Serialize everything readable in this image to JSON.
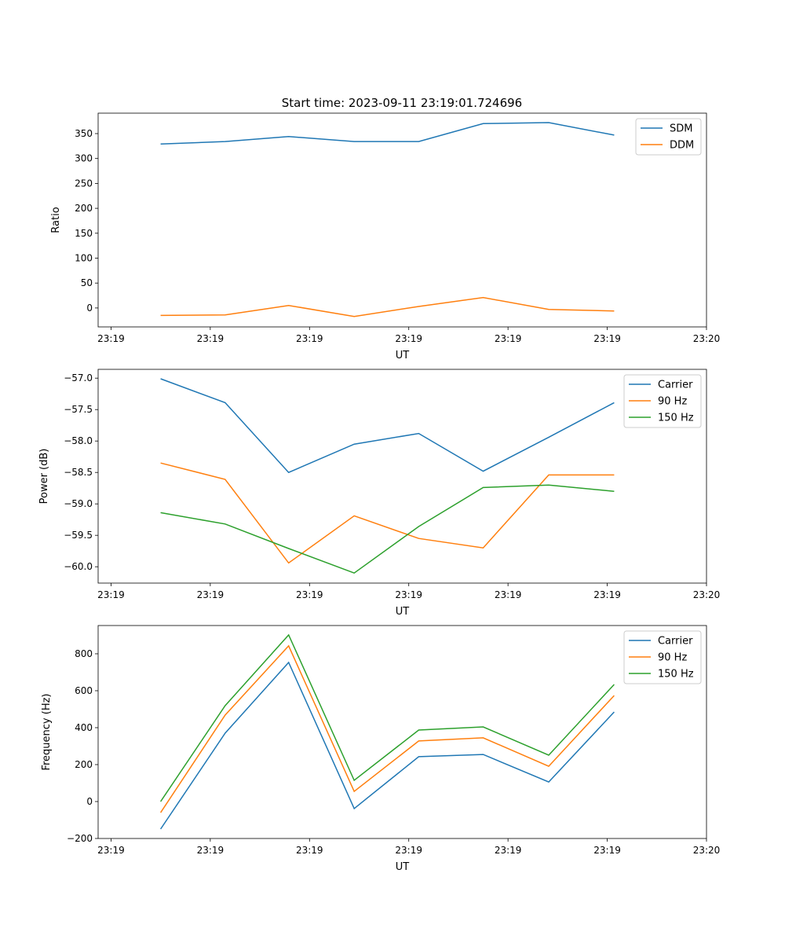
{
  "title": "Start time: 2023-09-11 23:19:01.724696",
  "colors": {
    "c0": "#1f77b4",
    "c1": "#ff7f0e",
    "c2": "#2ca02c"
  },
  "chart_data": [
    {
      "type": "line",
      "xlabel": "UT",
      "ylabel": "Ratio",
      "xlim": [
        -1.3,
        60
      ],
      "ylim": [
        -38,
        391
      ],
      "x_ticks": [
        0,
        10,
        20,
        30,
        40,
        50,
        60
      ],
      "x_tick_labels": [
        "23:19",
        "23:19",
        "23:19",
        "23:19",
        "23:19",
        "23:19",
        "23:20"
      ],
      "y_ticks": [
        0,
        50,
        100,
        150,
        200,
        250,
        300,
        350
      ],
      "y_tick_labels": [
        "0",
        "50",
        "100",
        "150",
        "200",
        "250",
        "300",
        "350"
      ],
      "legend": "top-right",
      "x": [
        5.0,
        11.5,
        17.9,
        24.5,
        31.0,
        37.5,
        44.1,
        50.7
      ],
      "series": [
        {
          "name": "SDM",
          "color": "#1f77b4",
          "values": [
            329,
            334,
            344,
            334,
            334,
            370,
            372,
            347
          ]
        },
        {
          "name": "DDM",
          "color": "#ff7f0e",
          "values": [
            -15,
            -14,
            5,
            -17,
            3,
            21,
            -3,
            -6
          ]
        }
      ]
    },
    {
      "type": "line",
      "xlabel": "UT",
      "ylabel": "Power (dB)",
      "xlim": [
        -1.3,
        60
      ],
      "ylim": [
        -60.26,
        -56.86
      ],
      "x_ticks": [
        0,
        10,
        20,
        30,
        40,
        50,
        60
      ],
      "x_tick_labels": [
        "23:19",
        "23:19",
        "23:19",
        "23:19",
        "23:19",
        "23:19",
        "23:20"
      ],
      "y_ticks": [
        -60,
        -59.5,
        -59,
        -58.5,
        -58,
        -57.5,
        -57
      ],
      "y_tick_labels": [
        "−60.0",
        "−59.5",
        "−59.0",
        "−58.5",
        "−58.0",
        "−57.5",
        "−57.0"
      ],
      "legend": "top-right",
      "x": [
        5.0,
        11.5,
        17.9,
        24.5,
        31.0,
        37.5,
        44.1,
        50.7
      ],
      "series": [
        {
          "name": "Carrier",
          "color": "#1f77b4",
          "values": [
            -57.01,
            -57.39,
            -58.5,
            -58.05,
            -57.88,
            -58.48,
            -57.94,
            -57.39
          ]
        },
        {
          "name": "90 Hz",
          "color": "#ff7f0e",
          "values": [
            -58.35,
            -58.61,
            -59.94,
            -59.19,
            -59.55,
            -59.7,
            -58.54,
            -58.54
          ]
        },
        {
          "name": "150 Hz",
          "color": "#2ca02c",
          "values": [
            -59.14,
            -59.32,
            -59.71,
            -60.1,
            -59.36,
            -58.74,
            -58.7,
            -58.8
          ]
        }
      ]
    },
    {
      "type": "line",
      "xlabel": "UT",
      "ylabel": "Frequency (Hz)",
      "xlim": [
        -1.3,
        60
      ],
      "ylim": [
        -200,
        953
      ],
      "x_ticks": [
        0,
        10,
        20,
        30,
        40,
        50,
        60
      ],
      "x_tick_labels": [
        "23:19",
        "23:19",
        "23:19",
        "23:19",
        "23:19",
        "23:19",
        "23:20"
      ],
      "y_ticks": [
        -200,
        0,
        200,
        400,
        600,
        800
      ],
      "y_tick_labels": [
        "−200",
        "0",
        "200",
        "400",
        "600",
        "800"
      ],
      "legend": "top-right",
      "x": [
        5.0,
        11.5,
        17.9,
        24.5,
        31.0,
        37.5,
        44.1,
        50.7
      ],
      "series": [
        {
          "name": "Carrier",
          "color": "#1f77b4",
          "values": [
            -149,
            370,
            753,
            -38,
            243,
            255,
            106,
            485
          ]
        },
        {
          "name": "90 Hz",
          "color": "#ff7f0e",
          "values": [
            -60,
            468,
            843,
            55,
            328,
            345,
            191,
            574
          ]
        },
        {
          "name": "150 Hz",
          "color": "#2ca02c",
          "values": [
            0,
            519,
            902,
            115,
            387,
            404,
            251,
            634
          ]
        }
      ]
    }
  ]
}
